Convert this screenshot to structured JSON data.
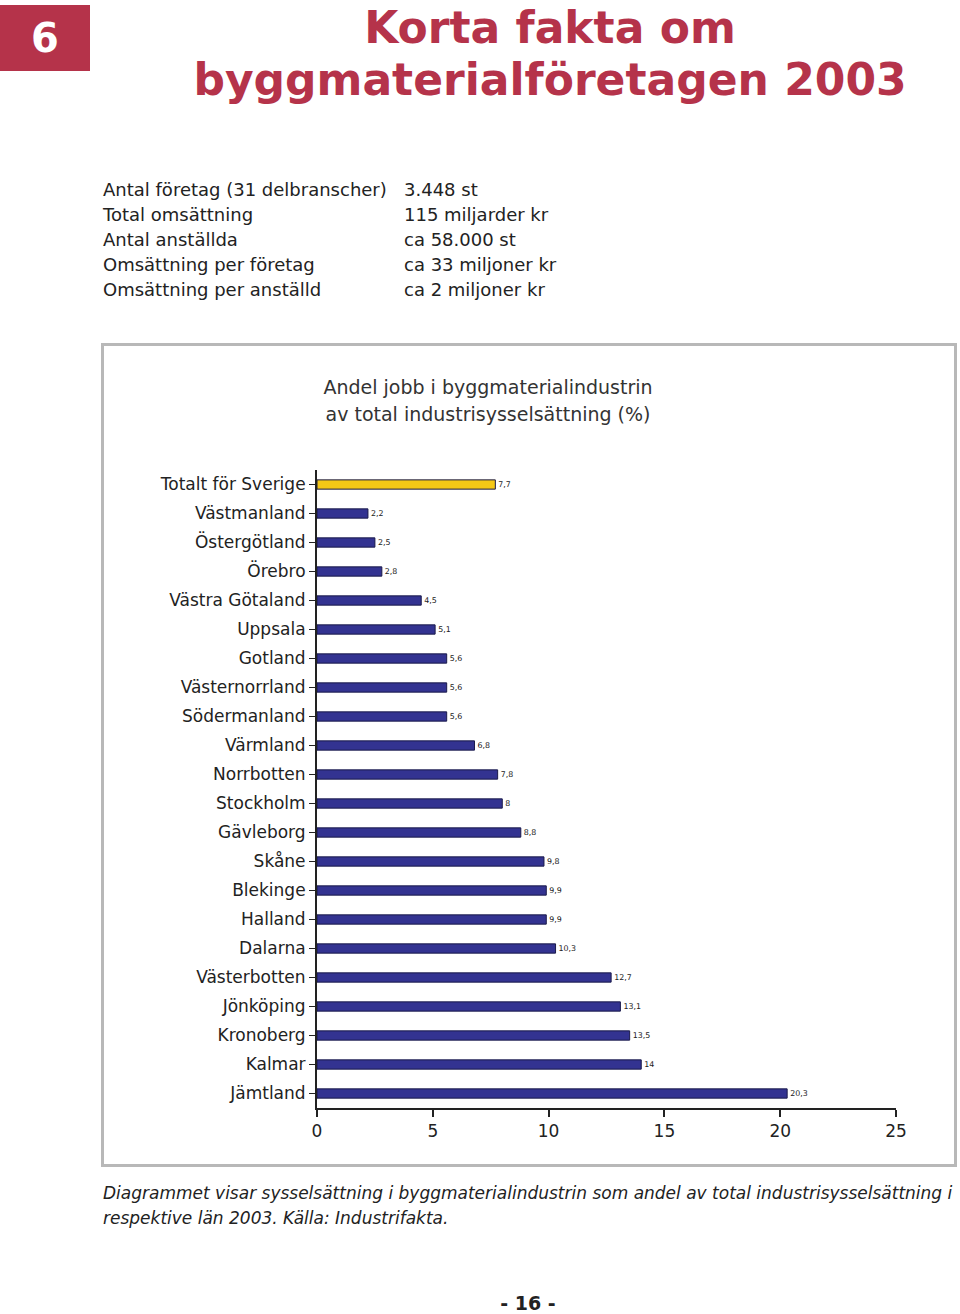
{
  "header": {
    "section": "6",
    "title_lines": [
      "Korta fakta om",
      "byggmaterialföretagen 2003"
    ]
  },
  "facts": [
    [
      "Antal företag (31 delbranscher)",
      "3.448 st"
    ],
    [
      "Total omsättning",
      "115 miljarder kr"
    ],
    [
      "Antal anställda",
      "ca 58.000 st"
    ],
    [
      "Omsättning per företag",
      "ca 33 miljoner kr"
    ],
    [
      "Omsättning per anställd",
      "ca 2 miljoner kr"
    ]
  ],
  "chart_data": {
    "type": "bar",
    "orientation": "horizontal",
    "title": [
      "Andel jobb i byggmaterialindustrin",
      "av total industrisysselsättning (%)"
    ],
    "categories": [
      "Totalt för Sverige",
      "Västmanland",
      "Östergötland",
      "Örebro",
      "Västra Götaland",
      "Uppsala",
      "Gotland",
      "Västernorrland",
      "Södermanland",
      "Värmland",
      "Norrbotten",
      "Stockholm",
      "Gävleborg",
      "Skåne",
      "Blekinge",
      "Halland",
      "Dalarna",
      "Västerbotten",
      "Jönköping",
      "Kronoberg",
      "Kalmar",
      "Jämtland"
    ],
    "values": [
      7.7,
      2.2,
      2.5,
      2.8,
      4.5,
      5.1,
      5.6,
      5.6,
      5.6,
      6.8,
      7.8,
      8,
      8.8,
      9.8,
      9.9,
      9.9,
      10.3,
      12.7,
      13.1,
      13.5,
      14,
      20.3
    ],
    "value_labels": [
      "7,7",
      "2,2",
      "2,5",
      "2,8",
      "4,5",
      "5,1",
      "5,6",
      "5,6",
      "5,6",
      "6,8",
      "7,8",
      "8",
      "8,8",
      "9,8",
      "9,9",
      "9,9",
      "10,3",
      "12,7",
      "13,1",
      "13,5",
      "14",
      "20,3"
    ],
    "colors": [
      "#f5c816",
      "#333391",
      "#333391",
      "#333391",
      "#333391",
      "#333391",
      "#333391",
      "#333391",
      "#333391",
      "#333391",
      "#333391",
      "#333391",
      "#333391",
      "#333391",
      "#333391",
      "#333391",
      "#333391",
      "#333391",
      "#333391",
      "#333391",
      "#333391",
      "#333391"
    ],
    "xlim": [
      0,
      25
    ],
    "xticks": [
      0,
      5,
      10,
      15,
      20,
      25
    ],
    "data_labels": true,
    "grid": false
  },
  "caption": "Diagrammet visar sysselsättning i byggmaterialindustrin som andel av total industrisysselsättning i respektive län 2003. Källa: Industrifakta.",
  "page_number": "- 16 -"
}
